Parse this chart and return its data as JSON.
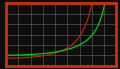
{
  "background_color": "#0d0d0d",
  "border_color": "#cc3300",
  "border_linewidth": 2.0,
  "grid_color": "#666666",
  "grid_linewidth": 0.4,
  "lambert_color": "#00dd00",
  "gall_color": "#cc2200",
  "x_min": 0,
  "x_max": 90,
  "y_min": 0,
  "y_max": 6,
  "x_ticks": [
    0,
    10,
    20,
    30,
    40,
    50,
    60,
    70,
    80,
    90
  ],
  "y_ticks": [
    0,
    1,
    2,
    3,
    4,
    5,
    6
  ],
  "figsize": [
    1.2,
    0.69
  ],
  "dpi": 100,
  "line_width": 0.8
}
